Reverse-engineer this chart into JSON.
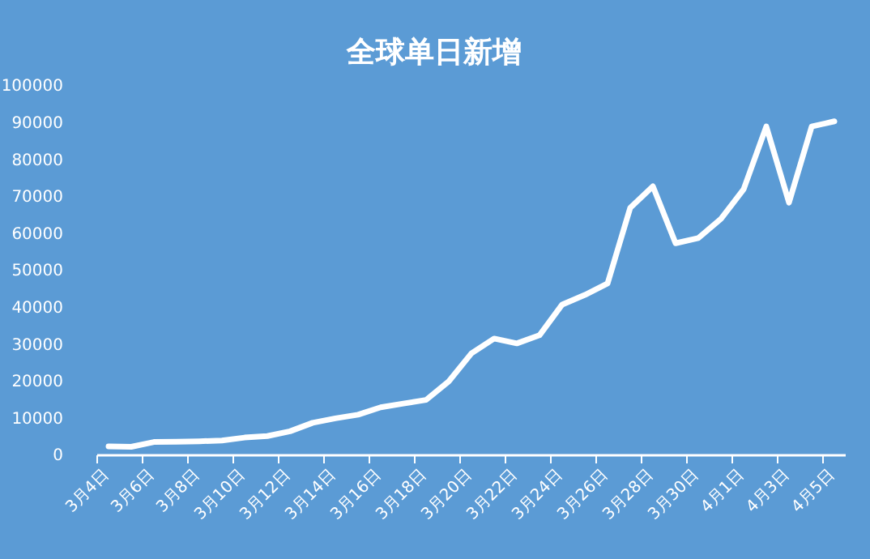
{
  "chart_data": {
    "type": "line",
    "title": "全球单日新增",
    "categories": [
      "3月4日",
      null,
      "3月6日",
      null,
      "3月8日",
      null,
      "3月10日",
      null,
      "3月12日",
      null,
      "3月14日",
      null,
      "3月16日",
      null,
      "3月18日",
      null,
      "3月20日",
      null,
      "3月22日",
      null,
      "3月24日",
      null,
      "3月26日",
      null,
      "3月28日",
      null,
      "3月30日",
      null,
      "4月1日",
      null,
      "4月3日",
      null,
      "4月5日"
    ],
    "series": [
      {
        "color": "#ffffff",
        "values": [
          2400,
          2300,
          3600,
          3700,
          3800,
          4000,
          4800,
          5200,
          6500,
          8800,
          10000,
          11000,
          13000,
          14000,
          15000,
          20000,
          27600,
          31600,
          30300,
          32500,
          40800,
          43400,
          46500,
          67000,
          72800,
          57400,
          58800,
          64000,
          72000,
          89000,
          68400,
          89000,
          90400
        ]
      }
    ],
    "ylim": [
      0,
      100000
    ],
    "yticks": [
      0,
      10000,
      20000,
      30000,
      40000,
      50000,
      60000,
      70000,
      80000,
      90000,
      100000
    ],
    "grid": false,
    "marker": "none",
    "line_style": "solid"
  }
}
